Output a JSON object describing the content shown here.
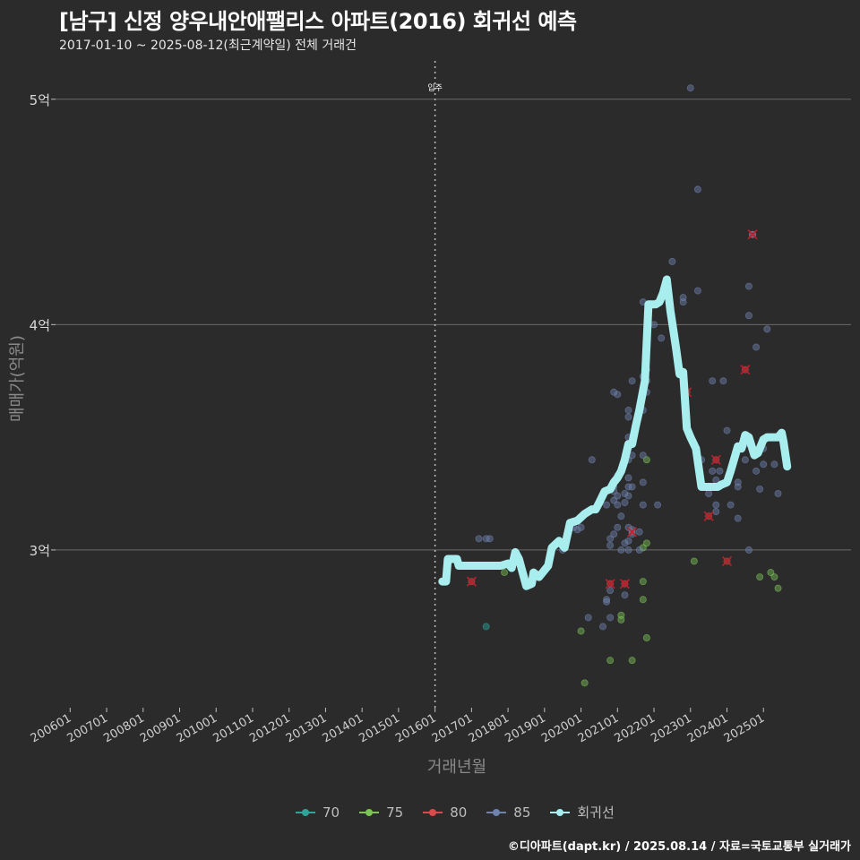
{
  "title": "[남구] 신정 양우내안애팰리스 아파트(2016) 회귀선 예측",
  "subtitle": "2017-01-10 ~ 2025-08-12(최근계약일) 전체 거래건",
  "footer": "©디아파트(dapt.kr) / 2025.08.14 / 자료=국토교통부 실거래가",
  "chart_data": {
    "type": "scatter",
    "xlabel": "거래년월",
    "ylabel": "매매가(억원)",
    "x_ticks": [
      "200601",
      "200701",
      "200801",
      "200901",
      "201001",
      "201101",
      "201201",
      "201301",
      "201401",
      "201501",
      "201601",
      "201701",
      "201801",
      "201901",
      "202001",
      "202101",
      "202201",
      "202301",
      "202401",
      "202501"
    ],
    "y_ticks": [
      {
        "value": 3,
        "label": "3억"
      },
      {
        "value": 4,
        "label": "4억"
      },
      {
        "value": 5,
        "label": "5억"
      }
    ],
    "xlim": [
      2005.6,
      2027.4
    ],
    "ylim": [
      2.3,
      5.17
    ],
    "annotation": {
      "x": 2016.0,
      "label": "입주"
    },
    "legend": [
      {
        "name": "70",
        "color": "#2fa59a"
      },
      {
        "name": "75",
        "color": "#7cc456"
      },
      {
        "name": "80",
        "color": "#d94a4a"
      },
      {
        "name": "85",
        "color": "#6f82ad"
      },
      {
        "name": "회귀선",
        "color": "#a9eeee"
      }
    ],
    "series": [
      {
        "name": "70",
        "points": [
          [
            2017.4,
            2.66
          ]
        ]
      },
      {
        "name": "75",
        "points": [
          [
            2017.9,
            2.9
          ],
          [
            2020.0,
            2.64
          ],
          [
            2020.1,
            2.41
          ],
          [
            2020.8,
            2.51
          ],
          [
            2021.1,
            2.71
          ],
          [
            2021.1,
            2.69
          ],
          [
            2021.4,
            2.51
          ],
          [
            2021.7,
            2.86
          ],
          [
            2021.7,
            2.78
          ],
          [
            2021.8,
            2.61
          ],
          [
            2021.7,
            3.01
          ],
          [
            2021.8,
            3.03
          ],
          [
            2021.8,
            3.4
          ],
          [
            2023.1,
            2.95
          ],
          [
            2024.9,
            2.88
          ],
          [
            2025.2,
            2.9
          ],
          [
            2025.3,
            2.88
          ],
          [
            2025.4,
            2.83
          ]
        ]
      },
      {
        "name": "80",
        "points": [
          [
            2017.0,
            2.86
          ],
          [
            2020.8,
            2.85
          ],
          [
            2021.2,
            2.85
          ],
          [
            2021.4,
            3.08
          ],
          [
            2022.9,
            3.7
          ],
          [
            2023.5,
            3.15
          ],
          [
            2023.7,
            3.4
          ],
          [
            2024.0,
            2.95
          ],
          [
            2024.5,
            3.8
          ],
          [
            2024.7,
            4.4
          ]
        ]
      },
      {
        "name": "85",
        "points": [
          [
            2017.2,
            3.05
          ],
          [
            2017.4,
            3.05
          ],
          [
            2017.5,
            3.05
          ],
          [
            2019.5,
            3.0
          ],
          [
            2019.8,
            3.1
          ],
          [
            2019.9,
            3.09
          ],
          [
            2020.0,
            3.1
          ],
          [
            2020.2,
            2.7
          ],
          [
            2020.3,
            3.4
          ],
          [
            2020.6,
            2.66
          ],
          [
            2020.7,
            2.78
          ],
          [
            2020.7,
            2.77
          ],
          [
            2020.7,
            3.2
          ],
          [
            2020.8,
            2.7
          ],
          [
            2020.8,
            2.82
          ],
          [
            2020.8,
            3.02
          ],
          [
            2020.8,
            3.05
          ],
          [
            2020.9,
            3.07
          ],
          [
            2020.9,
            3.22
          ],
          [
            2020.9,
            3.26
          ],
          [
            2020.9,
            3.28
          ],
          [
            2020.9,
            3.3
          ],
          [
            2020.9,
            3.7
          ],
          [
            2021.0,
            3.1
          ],
          [
            2021.0,
            3.2
          ],
          [
            2021.0,
            3.24
          ],
          [
            2021.0,
            3.33
          ],
          [
            2021.0,
            3.69
          ],
          [
            2021.1,
            3.0
          ],
          [
            2021.1,
            3.15
          ],
          [
            2021.2,
            2.8
          ],
          [
            2021.2,
            3.03
          ],
          [
            2021.2,
            3.21
          ],
          [
            2021.2,
            3.25
          ],
          [
            2021.3,
            3.0
          ],
          [
            2021.3,
            3.04
          ],
          [
            2021.3,
            3.1
          ],
          [
            2021.3,
            3.24
          ],
          [
            2021.3,
            3.28
          ],
          [
            2021.3,
            3.32
          ],
          [
            2021.3,
            3.4
          ],
          [
            2021.3,
            3.45
          ],
          [
            2021.3,
            3.5
          ],
          [
            2021.3,
            3.59
          ],
          [
            2021.3,
            3.62
          ],
          [
            2021.4,
            3.07
          ],
          [
            2021.4,
            3.09
          ],
          [
            2021.4,
            3.28
          ],
          [
            2021.4,
            3.42
          ],
          [
            2021.4,
            3.75
          ],
          [
            2021.6,
            3.0
          ],
          [
            2021.6,
            3.08
          ],
          [
            2021.7,
            3.2
          ],
          [
            2021.7,
            3.3
          ],
          [
            2021.7,
            3.42
          ],
          [
            2021.7,
            3.62
          ],
          [
            2021.7,
            3.77
          ],
          [
            2021.7,
            4.1
          ],
          [
            2021.8,
            3.7
          ],
          [
            2021.8,
            3.75
          ],
          [
            2021.8,
            3.8
          ],
          [
            2021.8,
            3.85
          ],
          [
            2022.0,
            4.0
          ],
          [
            2022.1,
            3.2
          ],
          [
            2022.2,
            3.94
          ],
          [
            2022.5,
            4.28
          ],
          [
            2022.8,
            4.1
          ],
          [
            2022.8,
            4.12
          ],
          [
            2023.0,
            5.05
          ],
          [
            2023.2,
            4.6
          ],
          [
            2023.2,
            4.15
          ],
          [
            2023.3,
            3.4
          ],
          [
            2023.5,
            3.25
          ],
          [
            2023.6,
            3.35
          ],
          [
            2023.6,
            3.75
          ],
          [
            2023.7,
            3.17
          ],
          [
            2023.7,
            3.2
          ],
          [
            2023.7,
            3.31
          ],
          [
            2023.8,
            3.35
          ],
          [
            2023.9,
            3.75
          ],
          [
            2024.0,
            3.53
          ],
          [
            2024.1,
            3.2
          ],
          [
            2024.1,
            3.35
          ],
          [
            2024.3,
            3.14
          ],
          [
            2024.3,
            3.28
          ],
          [
            2024.3,
            3.3
          ],
          [
            2024.5,
            3.47
          ],
          [
            2024.5,
            3.4
          ],
          [
            2024.6,
            4.04
          ],
          [
            2024.6,
            4.17
          ],
          [
            2024.6,
            3.0
          ],
          [
            2024.7,
            4.4
          ],
          [
            2024.8,
            3.35
          ],
          [
            2024.8,
            3.9
          ],
          [
            2024.9,
            3.27
          ],
          [
            2025.0,
            3.45
          ],
          [
            2025.0,
            3.38
          ],
          [
            2025.1,
            3.98
          ],
          [
            2025.3,
            3.38
          ],
          [
            2025.4,
            3.25
          ],
          [
            2025.5,
            3.5
          ]
        ]
      }
    ],
    "regression": [
      [
        2016.2,
        2.86
      ],
      [
        2016.3,
        2.86
      ],
      [
        2016.35,
        2.96
      ],
      [
        2016.6,
        2.96
      ],
      [
        2016.65,
        2.93
      ],
      [
        2017.0,
        2.93
      ],
      [
        2017.5,
        2.93
      ],
      [
        2017.8,
        2.93
      ],
      [
        2018.0,
        2.94
      ],
      [
        2018.1,
        2.92
      ],
      [
        2018.2,
        2.99
      ],
      [
        2018.3,
        2.96
      ],
      [
        2018.5,
        2.84
      ],
      [
        2018.65,
        2.85
      ],
      [
        2018.7,
        2.9
      ],
      [
        2018.85,
        2.88
      ],
      [
        2019.0,
        2.91
      ],
      [
        2019.1,
        2.93
      ],
      [
        2019.2,
        3.01
      ],
      [
        2019.4,
        3.04
      ],
      [
        2019.55,
        3.01
      ],
      [
        2019.7,
        3.12
      ],
      [
        2019.9,
        3.13
      ],
      [
        2020.1,
        3.16
      ],
      [
        2020.3,
        3.18
      ],
      [
        2020.4,
        3.18
      ],
      [
        2020.5,
        3.21
      ],
      [
        2020.65,
        3.26
      ],
      [
        2020.8,
        3.27
      ],
      [
        2020.9,
        3.3
      ],
      [
        2021.0,
        3.32
      ],
      [
        2021.1,
        3.35
      ],
      [
        2021.2,
        3.4
      ],
      [
        2021.3,
        3.47
      ],
      [
        2021.4,
        3.47
      ],
      [
        2021.5,
        3.55
      ],
      [
        2021.6,
        3.62
      ],
      [
        2021.75,
        3.75
      ],
      [
        2021.85,
        4.09
      ],
      [
        2022.05,
        4.09
      ],
      [
        2022.15,
        4.1
      ],
      [
        2022.25,
        4.14
      ],
      [
        2022.35,
        4.2
      ],
      [
        2022.45,
        4.06
      ],
      [
        2022.6,
        3.9
      ],
      [
        2022.7,
        3.78
      ],
      [
        2022.8,
        3.79
      ],
      [
        2022.9,
        3.54
      ],
      [
        2023.0,
        3.5
      ],
      [
        2023.15,
        3.45
      ],
      [
        2023.3,
        3.28
      ],
      [
        2023.5,
        3.28
      ],
      [
        2023.75,
        3.28
      ],
      [
        2023.85,
        3.29
      ],
      [
        2024.0,
        3.3
      ],
      [
        2024.1,
        3.35
      ],
      [
        2024.3,
        3.46
      ],
      [
        2024.4,
        3.45
      ],
      [
        2024.5,
        3.51
      ],
      [
        2024.6,
        3.5
      ],
      [
        2024.75,
        3.42
      ],
      [
        2024.85,
        3.43
      ],
      [
        2025.0,
        3.49
      ],
      [
        2025.1,
        3.5
      ],
      [
        2025.3,
        3.5
      ],
      [
        2025.4,
        3.5
      ],
      [
        2025.5,
        3.52
      ],
      [
        2025.55,
        3.48
      ],
      [
        2025.65,
        3.37
      ]
    ]
  }
}
